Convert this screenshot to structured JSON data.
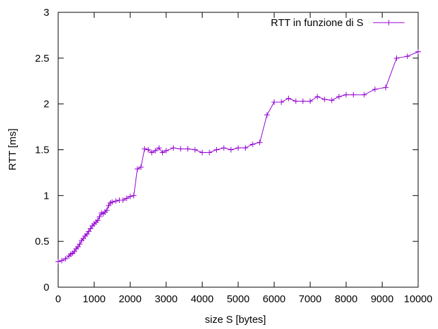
{
  "chart_data": {
    "type": "line",
    "title": "",
    "xlabel": "size S [bytes]",
    "ylabel": "RTT [ms]",
    "xlim": [
      0,
      10000
    ],
    "ylim": [
      0,
      3
    ],
    "x_ticks": [
      0,
      1000,
      2000,
      3000,
      4000,
      5000,
      6000,
      7000,
      8000,
      9000,
      10000
    ],
    "y_ticks": [
      0,
      0.5,
      1,
      1.5,
      2,
      2.5,
      3
    ],
    "y_tick_labels": [
      "0",
      "0.5",
      "1",
      "1.5",
      "2",
      "2.5",
      "3"
    ],
    "grid": false,
    "legend_position": "top-right",
    "series": [
      {
        "name": "RTT in funzione di S",
        "color": "#9400d3",
        "marker": "plus",
        "points": [
          [
            0,
            0.28
          ],
          [
            100,
            0.29
          ],
          [
            200,
            0.31
          ],
          [
            300,
            0.34
          ],
          [
            350,
            0.36
          ],
          [
            400,
            0.37
          ],
          [
            450,
            0.39
          ],
          [
            500,
            0.42
          ],
          [
            550,
            0.44
          ],
          [
            600,
            0.47
          ],
          [
            650,
            0.51
          ],
          [
            700,
            0.53
          ],
          [
            750,
            0.56
          ],
          [
            800,
            0.58
          ],
          [
            850,
            0.61
          ],
          [
            900,
            0.64
          ],
          [
            950,
            0.67
          ],
          [
            1000,
            0.69
          ],
          [
            1050,
            0.71
          ],
          [
            1100,
            0.73
          ],
          [
            1150,
            0.77
          ],
          [
            1200,
            0.81
          ],
          [
            1250,
            0.8
          ],
          [
            1300,
            0.82
          ],
          [
            1350,
            0.84
          ],
          [
            1400,
            0.89
          ],
          [
            1450,
            0.92
          ],
          [
            1500,
            0.93
          ],
          [
            1600,
            0.94
          ],
          [
            1700,
            0.95
          ],
          [
            1800,
            0.95
          ],
          [
            1900,
            0.97
          ],
          [
            2000,
            0.99
          ],
          [
            2100,
            1.0
          ],
          [
            2200,
            1.29
          ],
          [
            2300,
            1.31
          ],
          [
            2400,
            1.51
          ],
          [
            2500,
            1.5
          ],
          [
            2600,
            1.47
          ],
          [
            2700,
            1.49
          ],
          [
            2800,
            1.52
          ],
          [
            2900,
            1.47
          ],
          [
            3000,
            1.49
          ],
          [
            3200,
            1.52
          ],
          [
            3400,
            1.51
          ],
          [
            3600,
            1.51
          ],
          [
            3800,
            1.5
          ],
          [
            4000,
            1.47
          ],
          [
            4200,
            1.47
          ],
          [
            4400,
            1.5
          ],
          [
            4600,
            1.52
          ],
          [
            4800,
            1.5
          ],
          [
            5000,
            1.52
          ],
          [
            5200,
            1.52
          ],
          [
            5400,
            1.56
          ],
          [
            5600,
            1.58
          ],
          [
            5800,
            1.88
          ],
          [
            6000,
            2.02
          ],
          [
            6200,
            2.02
          ],
          [
            6400,
            2.06
          ],
          [
            6600,
            2.03
          ],
          [
            6800,
            2.03
          ],
          [
            7000,
            2.03
          ],
          [
            7200,
            2.08
          ],
          [
            7400,
            2.05
          ],
          [
            7600,
            2.04
          ],
          [
            7800,
            2.08
          ],
          [
            8000,
            2.1
          ],
          [
            8200,
            2.1
          ],
          [
            8500,
            2.1
          ],
          [
            8800,
            2.16
          ],
          [
            9100,
            2.18
          ],
          [
            9400,
            2.5
          ],
          [
            9700,
            2.52
          ],
          [
            10000,
            2.57
          ]
        ]
      }
    ]
  }
}
